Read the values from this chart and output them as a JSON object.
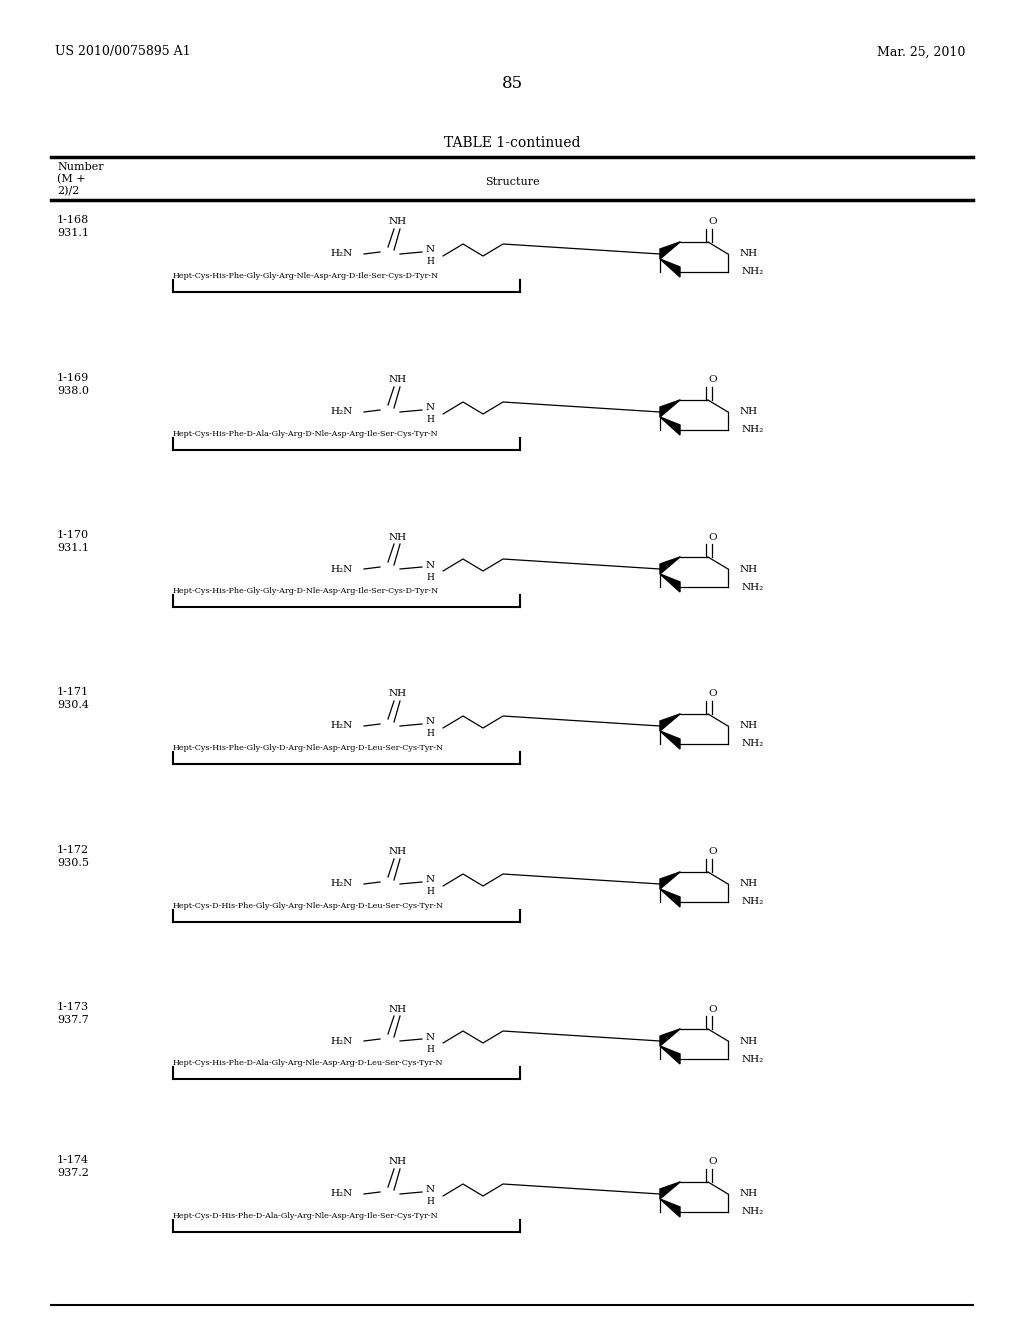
{
  "title_left": "US 2010/0075895 A1",
  "title_right": "Mar. 25, 2010",
  "page_number": "85",
  "table_title": "TABLE 1-continued",
  "background_color": "#ffffff",
  "entries": [
    {
      "id": "1-168",
      "mass": "931.1",
      "peptide": "Hept-Cys-His-Phe-Gly-Gly-Arg-Nle-Asp-Arg-D-Ile-Ser-Cys-D-Tyr-N",
      "suffix": "NH₂"
    },
    {
      "id": "1-169",
      "mass": "938.0",
      "peptide": "Hept-Cys-His-Phe-D-Ala-Gly-Arg-D-Nle-Asp-Arg-Ile-Ser-Cys-Tyr-N",
      "suffix": "NH₂"
    },
    {
      "id": "1-170",
      "mass": "931.1",
      "peptide": "Hept-Cys-His-Phe-Gly-Gly-Arg-D-Nle-Asp-Arg-Ile-Ser-Cys-D-Tyr-N",
      "suffix": "NH₂"
    },
    {
      "id": "1-171",
      "mass": "930.4",
      "peptide": "Hept-Cys-His-Phe-Gly-Gly-D-Arg-Nle-Asp-Arg-D-Leu-Ser-Cys-Tyr-N",
      "suffix": "NH₂"
    },
    {
      "id": "1-172",
      "mass": "930.5",
      "peptide": "Hept-Cys-D-His-Phe-Gly-Gly-Arg-Nle-Asp-Arg-D-Leu-Ser-Cys-Tyr-N",
      "suffix": "NH₂"
    },
    {
      "id": "1-173",
      "mass": "937.7",
      "peptide": "Hept-Cys-His-Phe-D-Ala-Gly-Arg-Nle-Asp-Arg-D-Leu-Ser-Cys-Tyr-N",
      "suffix": "NH₂"
    },
    {
      "id": "1-174",
      "mass": "937.2",
      "peptide": "Hept-Cys-D-His-Phe-D-Ala-Gly-Arg-Nle-Asp-Arg-Ile-Ser-Cys-Tyr-N",
      "suffix": "NH₂"
    }
  ]
}
